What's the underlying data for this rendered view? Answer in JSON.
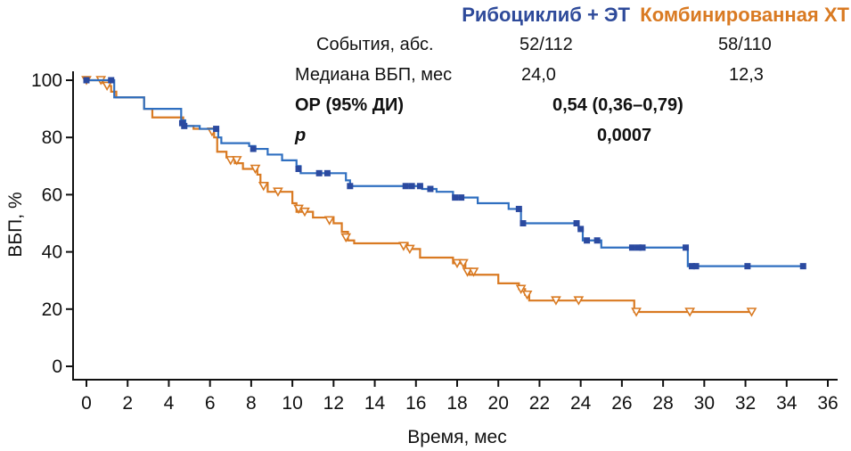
{
  "chart_data": {
    "type": "line",
    "subtype": "kaplan-meier",
    "title": "",
    "xlabel": "Время, мес",
    "ylabel": "ВБП, %",
    "xlim": [
      0,
      36
    ],
    "ylim": [
      0,
      100
    ],
    "xticks": [
      0,
      2,
      4,
      6,
      8,
      10,
      12,
      14,
      16,
      18,
      20,
      22,
      24,
      26,
      28,
      30,
      32,
      34,
      36
    ],
    "yticks": [
      0,
      20,
      40,
      60,
      80,
      100
    ],
    "grid": false,
    "legend_position": "top-right",
    "series": [
      {
        "name": "Рибоциклиб + ЭТ",
        "color": "#2f6fc0",
        "marker_color": "#2b4aa0",
        "censor_marker": "square",
        "steps": [
          [
            0,
            100
          ],
          [
            1.35,
            94
          ],
          [
            2.8,
            90
          ],
          [
            4.6,
            86
          ],
          [
            4.8,
            84
          ],
          [
            5.5,
            83
          ],
          [
            6.4,
            80
          ],
          [
            6.55,
            78
          ],
          [
            7.9,
            77
          ],
          [
            8.2,
            76
          ],
          [
            8.8,
            74
          ],
          [
            9.5,
            72
          ],
          [
            10.2,
            70
          ],
          [
            10.4,
            67.5
          ],
          [
            12.6,
            65
          ],
          [
            12.8,
            63
          ],
          [
            16.3,
            62
          ],
          [
            17.0,
            61
          ],
          [
            17.8,
            59
          ],
          [
            19.0,
            57
          ],
          [
            20.5,
            55
          ],
          [
            21.1,
            50
          ],
          [
            23.9,
            48
          ],
          [
            24.1,
            44
          ],
          [
            25.0,
            41.5
          ],
          [
            29.2,
            35
          ],
          [
            34.8,
            35
          ]
        ],
        "censored": [
          [
            0,
            100
          ],
          [
            1.2,
            100
          ],
          [
            4.65,
            85
          ],
          [
            4.75,
            84
          ],
          [
            6.3,
            83
          ],
          [
            8.1,
            76
          ],
          [
            10.3,
            69
          ],
          [
            11.3,
            67.5
          ],
          [
            11.7,
            67.5
          ],
          [
            12.8,
            63
          ],
          [
            15.5,
            63
          ],
          [
            15.8,
            63
          ],
          [
            16.2,
            63
          ],
          [
            16.7,
            62
          ],
          [
            17.9,
            59
          ],
          [
            18.2,
            59
          ],
          [
            21.0,
            55
          ],
          [
            21.2,
            50
          ],
          [
            23.8,
            50
          ],
          [
            24.0,
            48
          ],
          [
            24.3,
            44
          ],
          [
            24.8,
            44
          ],
          [
            26.5,
            41.5
          ],
          [
            26.8,
            41.5
          ],
          [
            27.0,
            41.5
          ],
          [
            29.1,
            41.5
          ],
          [
            29.4,
            35
          ],
          [
            29.6,
            35
          ],
          [
            32.1,
            35
          ],
          [
            34.8,
            35
          ]
        ]
      },
      {
        "name": "Комбинированная ХТ",
        "color": "#d97a22",
        "marker_color": "#d97a22",
        "censor_marker": "open-triangle-down",
        "steps": [
          [
            0,
            100
          ],
          [
            0.8,
            99
          ],
          [
            1.0,
            98
          ],
          [
            1.2,
            96
          ],
          [
            1.45,
            94
          ],
          [
            2.8,
            90
          ],
          [
            3.2,
            87
          ],
          [
            4.7,
            84
          ],
          [
            5.2,
            83
          ],
          [
            6.2,
            80
          ],
          [
            6.35,
            75
          ],
          [
            6.8,
            73
          ],
          [
            7.2,
            71
          ],
          [
            7.6,
            69
          ],
          [
            8.3,
            67
          ],
          [
            8.45,
            64
          ],
          [
            8.8,
            61
          ],
          [
            10.0,
            57
          ],
          [
            10.2,
            54
          ],
          [
            11.0,
            52
          ],
          [
            12.0,
            50
          ],
          [
            12.4,
            47
          ],
          [
            12.7,
            44
          ],
          [
            13.0,
            43
          ],
          [
            15.6,
            41
          ],
          [
            16.2,
            38
          ],
          [
            17.8,
            36
          ],
          [
            18.4,
            34
          ],
          [
            18.6,
            32
          ],
          [
            20.0,
            29
          ],
          [
            21.0,
            27
          ],
          [
            21.3,
            25
          ],
          [
            21.5,
            23
          ],
          [
            26.6,
            19
          ],
          [
            32.3,
            19
          ]
        ],
        "censored": [
          [
            0,
            100
          ],
          [
            0.7,
            100
          ],
          [
            1.0,
            98
          ],
          [
            6.1,
            82
          ],
          [
            7.0,
            72
          ],
          [
            7.3,
            72
          ],
          [
            8.2,
            69
          ],
          [
            8.6,
            63
          ],
          [
            9.3,
            61
          ],
          [
            10.3,
            55
          ],
          [
            10.6,
            54
          ],
          [
            11.8,
            51
          ],
          [
            12.6,
            45
          ],
          [
            15.4,
            42
          ],
          [
            15.7,
            41
          ],
          [
            18.0,
            36
          ],
          [
            18.3,
            36
          ],
          [
            18.5,
            33
          ],
          [
            18.8,
            33
          ],
          [
            21.1,
            27
          ],
          [
            21.4,
            25
          ],
          [
            22.8,
            23
          ],
          [
            23.9,
            23
          ],
          [
            26.7,
            19
          ],
          [
            29.3,
            19
          ],
          [
            32.3,
            19
          ]
        ]
      }
    ],
    "annotations": {
      "legend_labels": [
        "Рибоциклиб + ЭТ",
        "Комбинированная ХТ"
      ],
      "rows": [
        {
          "label": "События, абс.",
          "ribociclib": "52/112",
          "chemo": "58/110",
          "bold": false
        },
        {
          "label": "Медиана ВБП, мес",
          "ribociclib": "24,0",
          "chemo": "12,3",
          "bold": false
        },
        {
          "label": "ОР (95% ДИ)",
          "combined": "0,54 (0,36–0,79)",
          "bold": true
        },
        {
          "label": "p",
          "combined": "0,0007",
          "bold": true,
          "italic_label": true
        }
      ]
    }
  }
}
